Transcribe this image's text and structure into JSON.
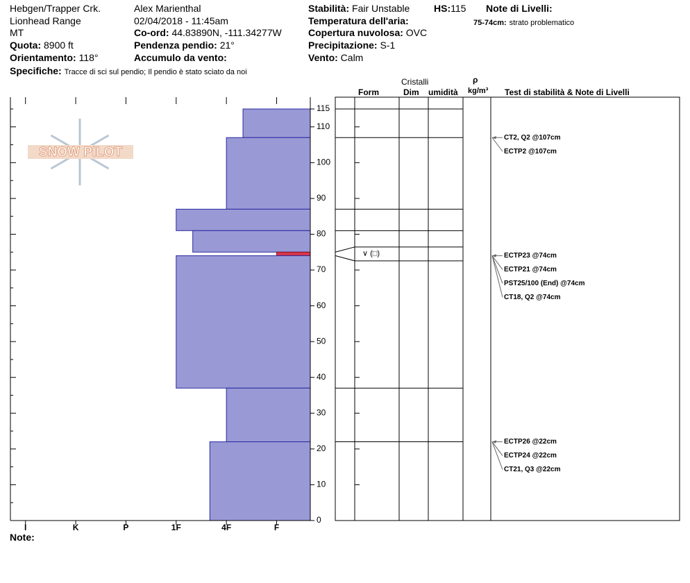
{
  "header": {
    "location": "Hebgen/Trapper Crk.",
    "range": "Lionhead Range",
    "state": "MT",
    "elevation_label": "Quota:",
    "elevation": "8900 ft",
    "aspect_label": "Orientamento:",
    "aspect": "118°",
    "specifics_label": "Specifiche:",
    "specifics": "Tracce di sci sul pendio;  Il pendio è stato sciato da noi",
    "observer": "Alex Marienthal",
    "datetime": "02/04/2018 - 11:45am",
    "coord_label": "Co-ord:",
    "coord": "44.83890N, -111.34277W",
    "slope_label": "Pendenza pendio:",
    "slope": "21°",
    "wind_loading_label": "Accumulo da vento:",
    "stability_label": "Stabilità:",
    "stability": "Fair Unstable",
    "hs_label": "HS:",
    "hs": "115",
    "layer_notes_label": "Note di Livelli:",
    "layer_note_depth": "75-74cm:",
    "layer_note": "strato problematico",
    "air_temp_label": "Temperatura dell'aria:",
    "sky_label": "Copertura nuvolosa:",
    "sky": "OVC",
    "precip_label": "Precipitazione:",
    "precip": "S-1",
    "wind_label": "Vento:",
    "wind": "Calm",
    "logo": "SNOW PILOT",
    "note_label": "Note:"
  },
  "table_header": {
    "crystals": "Cristalli",
    "form": "Form",
    "size": "Dim",
    "moisture": "umidità",
    "density_symbol": "ρ",
    "density_unit": "kg/m³",
    "tests": "Test di stabilità & Note di Livelli"
  },
  "chart_data": {
    "type": "snow-profile",
    "ylim": [
      0,
      115
    ],
    "yticks": [
      0,
      10,
      20,
      30,
      40,
      50,
      60,
      70,
      80,
      90,
      100,
      110,
      115
    ],
    "xlim": [
      0.33,
      6.3
    ],
    "xticks": [
      {
        "value": 6,
        "label": "I"
      },
      {
        "value": 5,
        "label": "K"
      },
      {
        "value": 4,
        "label": "P"
      },
      {
        "value": 3,
        "label": "1F"
      },
      {
        "value": 2,
        "label": "4F"
      },
      {
        "value": 1,
        "label": "F"
      }
    ],
    "layers": [
      {
        "top": 115,
        "bottom": 107,
        "hardness": 1.67,
        "color": "#9999d6"
      },
      {
        "top": 107,
        "bottom": 87,
        "hardness": 2,
        "color": "#9999d6"
      },
      {
        "top": 87,
        "bottom": 81,
        "hardness": 3,
        "color": "#9999d6"
      },
      {
        "top": 81,
        "bottom": 75,
        "hardness": 2.67,
        "color": "#9999d6"
      },
      {
        "top": 75,
        "bottom": 74,
        "hardness": 1,
        "color": "#d9364a",
        "crystal": "∨ (□)"
      },
      {
        "top": 74,
        "bottom": 37,
        "hardness": 3,
        "color": "#9999d6"
      },
      {
        "top": 37,
        "bottom": 22,
        "hardness": 2,
        "color": "#9999d6"
      },
      {
        "top": 22,
        "bottom": 0,
        "hardness": 2.33,
        "color": "#9999d6"
      }
    ],
    "tests": [
      {
        "label": "CT2, Q2 @107cm",
        "depth": 107
      },
      {
        "label": "ECTP2 @107cm",
        "depth": 107
      },
      {
        "label": "ECTP23 @74cm",
        "depth": 74
      },
      {
        "label": "ECTP21 @74cm",
        "depth": 74
      },
      {
        "label": "PST25/100 (End) @74cm",
        "depth": 74
      },
      {
        "label": "CT18, Q2 @74cm",
        "depth": 74
      },
      {
        "label": "ECTP26 @22cm",
        "depth": 22
      },
      {
        "label": "ECTP24 @22cm",
        "depth": 22
      },
      {
        "label": "CT21, Q3 @22cm",
        "depth": 22
      }
    ]
  }
}
